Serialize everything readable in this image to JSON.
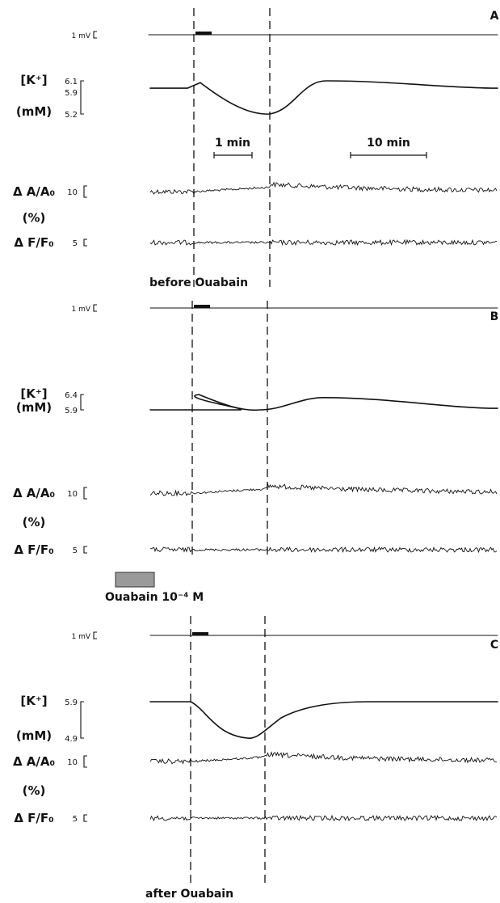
{
  "chart_data": {
    "type": "line",
    "scale_bars": [
      {
        "label": "1 min"
      },
      {
        "label": "10 min"
      }
    ],
    "label_colors": {
      "trace": "#111111",
      "ouabain_bar": "#9a9a9a"
    },
    "panels": [
      {
        "id": "A",
        "panel_label": "A",
        "condition_label": "before  Ouabain",
        "mv_label": "1 mV",
        "k_label": "[K⁺]",
        "k_unit": "(mM)",
        "k_ticks": [
          "6.1",
          "5.9",
          "5.2"
        ],
        "k_tick_values": [
          6.1,
          5.9,
          5.2
        ],
        "k_trace": {
          "baseline": 5.9,
          "peak": 6.05,
          "min": 5.2,
          "overshoot": 6.1,
          "end": 5.9
        },
        "dA_label": "Δ A/A₀",
        "percent_label": "(%)",
        "dA_scale": "10",
        "dF_label": "Δ F/F₀",
        "dF_scale": "5"
      },
      {
        "id": "B",
        "panel_label": "B",
        "mv_label": "1 mV",
        "k_label": "[K⁺]",
        "k_unit": "(mM)",
        "k_ticks": [
          "6.4",
          "5.9"
        ],
        "k_tick_values": [
          6.4,
          5.9
        ],
        "k_trace": {
          "baseline": 5.9,
          "peak": 6.4,
          "min": 5.9,
          "overshoot": 6.3,
          "end": 5.95
        },
        "dA_label": "Δ A/A₀",
        "percent_label": "(%)",
        "dA_scale": "10",
        "dF_label": "Δ F/F₀",
        "dF_scale": "5",
        "ouabain_label": "Ouabain  10⁻⁴ M"
      },
      {
        "id": "C",
        "panel_label": "C",
        "condition_label": "after  Ouabain",
        "mv_label": "1 mV",
        "k_label": "[K⁺]",
        "k_unit": "(mM)",
        "k_ticks": [
          "5.9",
          "4.9"
        ],
        "k_tick_values": [
          5.9,
          4.9
        ],
        "k_trace": {
          "baseline": 5.9,
          "peak": 5.9,
          "min": 4.9,
          "overshoot": 5.9,
          "end": 5.9
        },
        "dA_label": "Δ A/A₀",
        "percent_label": "(%)",
        "dA_scale": "10",
        "dF_label": "Δ F/F₀",
        "dF_scale": "5"
      }
    ]
  }
}
